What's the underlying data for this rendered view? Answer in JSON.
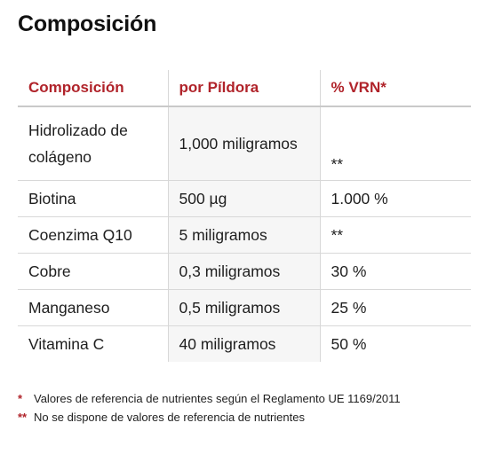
{
  "title": "Composición",
  "table": {
    "headers": [
      "Composición",
      "por Píldora",
      "% VRN*"
    ],
    "rows": [
      {
        "name": "Hidrolizado de colágeno",
        "amount": "1,000 miligramos",
        "vrn": "**"
      },
      {
        "name": "Biotina",
        "amount": "500 µg",
        "vrn": "1.000 %"
      },
      {
        "name": "Coenzima Q10",
        "amount": "5 miligramos",
        "vrn": "**"
      },
      {
        "name": "Cobre",
        "amount": "0,3 miligramos",
        "vrn": "30 %"
      },
      {
        "name": "Manganeso",
        "amount": "0,5 miligramos",
        "vrn": "25 %"
      },
      {
        "name": "Vitamina C",
        "amount": "40 miligramos",
        "vrn": "50 %"
      }
    ]
  },
  "footnotes": [
    {
      "mark": "*",
      "text": "Valores de referencia de nutrientes según el Reglamento UE 1169/2011"
    },
    {
      "mark": "**",
      "text": "No se dispone de valores de referencia de nutrientes"
    }
  ],
  "colors": {
    "accent": "#b0232a",
    "text": "#1e1e1e",
    "shaded_column": "#f6f6f6"
  }
}
